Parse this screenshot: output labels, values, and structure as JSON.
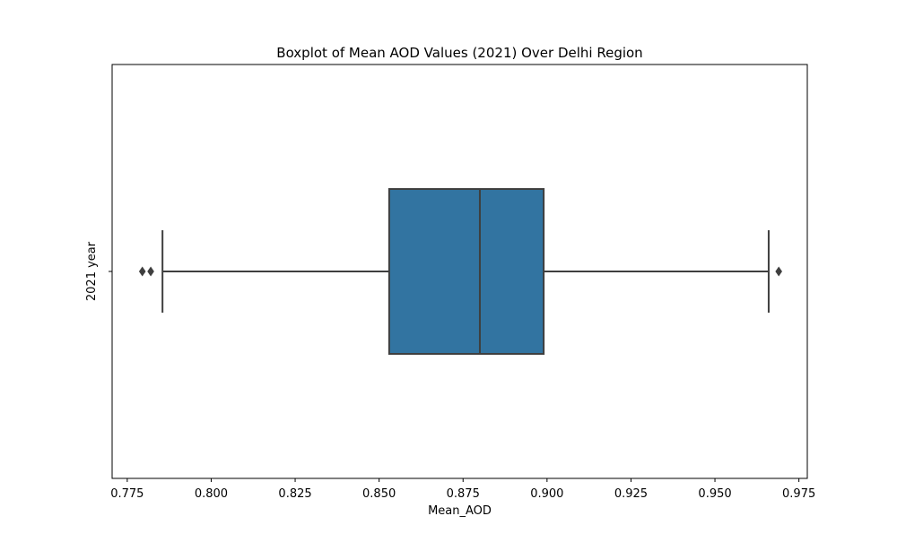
{
  "chart_data": {
    "type": "box",
    "title": "Boxplot of Mean AOD Values (2021) Over Delhi Region",
    "xlabel": "Mean_AOD",
    "ylabel": "2021 year",
    "orientation": "horizontal",
    "xlim": [
      0.7705,
      0.9775
    ],
    "x_ticks": [
      0.775,
      0.8,
      0.825,
      0.85,
      0.875,
      0.9,
      0.925,
      0.95,
      0.975
    ],
    "x_tick_labels": [
      "0.775",
      "0.800",
      "0.825",
      "0.850",
      "0.875",
      "0.900",
      "0.925",
      "0.950",
      "0.975"
    ],
    "grid": false,
    "categories": [
      ""
    ],
    "series": [
      {
        "whisker_low": 0.7855,
        "q1": 0.853,
        "median": 0.88,
        "q3": 0.899,
        "whisker_high": 0.966,
        "outliers": [
          0.7795,
          0.782,
          0.969
        ],
        "color": "#3274a1",
        "line_color": "#3f3f3f"
      }
    ]
  }
}
